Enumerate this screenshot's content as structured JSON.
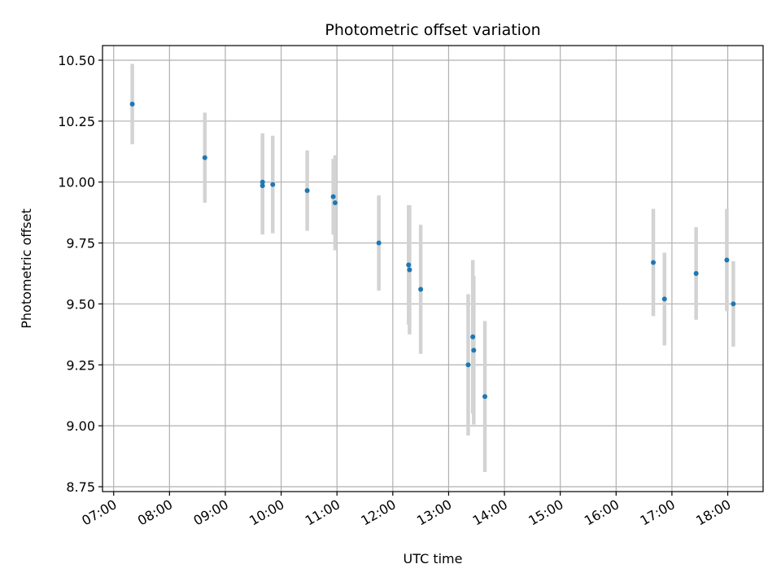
{
  "chart_data": {
    "type": "scatter",
    "title": "Photometric offset variation",
    "xlabel": "UTC time",
    "ylabel": "Photometric offset",
    "x_tick_labels": [
      "07:00",
      "08:00",
      "09:00",
      "10:00",
      "11:00",
      "12:00",
      "13:00",
      "14:00",
      "15:00",
      "16:00",
      "17:00",
      "18:00"
    ],
    "y_ticks": [
      8.75,
      9.0,
      9.25,
      9.5,
      9.75,
      10.0,
      10.25,
      10.5
    ],
    "y_tick_labels": [
      "8.75",
      "9.00",
      "9.25",
      "9.50",
      "9.75",
      "10.00",
      "10.25",
      "10.50"
    ],
    "xlim": [
      "06:48",
      "18:38"
    ],
    "ylim": [
      8.73,
      10.56
    ],
    "grid": true,
    "colors": {
      "point": "#1f77b4",
      "errorbar": "#d3d3d3",
      "grid": "#b0b0b0"
    },
    "points": [
      {
        "x": "07:20",
        "y": 10.32,
        "err": 0.165
      },
      {
        "x": "08:38",
        "y": 10.1,
        "err": 0.185
      },
      {
        "x": "09:40",
        "y": 10.0,
        "err": 0.2
      },
      {
        "x": "09:40",
        "y": 9.985,
        "err": 0.2
      },
      {
        "x": "09:51",
        "y": 9.99,
        "err": 0.2
      },
      {
        "x": "10:28",
        "y": 9.965,
        "err": 0.165
      },
      {
        "x": "10:56",
        "y": 9.94,
        "err": 0.155
      },
      {
        "x": "10:58",
        "y": 9.915,
        "err": 0.195
      },
      {
        "x": "11:45",
        "y": 9.75,
        "err": 0.195
      },
      {
        "x": "12:17",
        "y": 9.66,
        "err": 0.245
      },
      {
        "x": "12:18",
        "y": 9.64,
        "err": 0.265
      },
      {
        "x": "12:30",
        "y": 9.56,
        "err": 0.265
      },
      {
        "x": "13:21",
        "y": 9.25,
        "err": 0.29
      },
      {
        "x": "13:26",
        "y": 9.365,
        "err": 0.315
      },
      {
        "x": "13:27",
        "y": 9.31,
        "err": 0.305
      },
      {
        "x": "13:39",
        "y": 9.12,
        "err": 0.31
      },
      {
        "x": "16:40",
        "y": 9.67,
        "err": 0.22
      },
      {
        "x": "16:52",
        "y": 9.52,
        "err": 0.19
      },
      {
        "x": "17:26",
        "y": 9.625,
        "err": 0.19
      },
      {
        "x": "17:59",
        "y": 9.68,
        "err": 0.21
      },
      {
        "x": "18:06",
        "y": 9.5,
        "err": 0.175
      }
    ]
  }
}
